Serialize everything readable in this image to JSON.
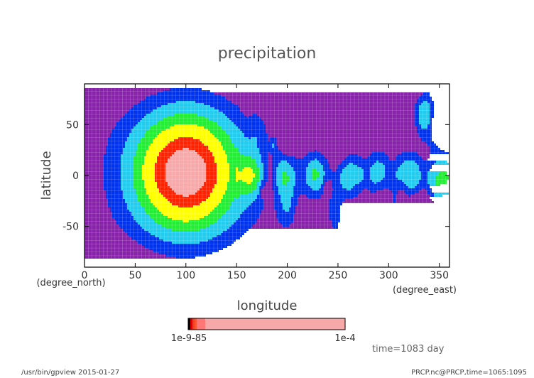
{
  "chart_data": {
    "type": "heatmap",
    "title": "precipitation",
    "xlabel": "longitude",
    "ylabel": "latitude",
    "x_unit": "(degree_east)",
    "y_unit": "(degree_north)",
    "xlim": [
      0,
      360
    ],
    "ylim": [
      -90,
      90
    ],
    "x_ticks": [
      0,
      50,
      100,
      150,
      200,
      250,
      300,
      350
    ],
    "y_ticks": [
      -50,
      0,
      50
    ],
    "fields": {
      "blob_center_lon": 100,
      "blob_center_lat": 3,
      "contour_levels_rel": [
        0.08,
        0.2,
        0.35,
        0.5,
        0.7,
        0.85
      ]
    },
    "colorbar": {
      "colors": [
        "#000000",
        "#dd0000",
        "#ee4422",
        "#ff5533",
        "#ff7777",
        "#f7a9a9"
      ],
      "left_labels": [
        "1",
        "1e-9",
        "1e-8",
        "1e-7",
        "1e-6",
        "1e-5"
      ],
      "left_label_overlap": "1e-9-85",
      "right_label": "1e-4"
    },
    "palette": {
      "purple": "#8822aa",
      "blue": "#0033ee",
      "cyan": "#22ccee",
      "green": "#22ee33",
      "yellow": "#ffff00",
      "red": "#ff2200",
      "pink": "#f7a9a9"
    },
    "annotation": "time=1083 day"
  },
  "footer": {
    "left": "/usr/bin/gpview  2015-01-27",
    "right": "PRCP.nc@PRCP,time=1065:1095"
  }
}
